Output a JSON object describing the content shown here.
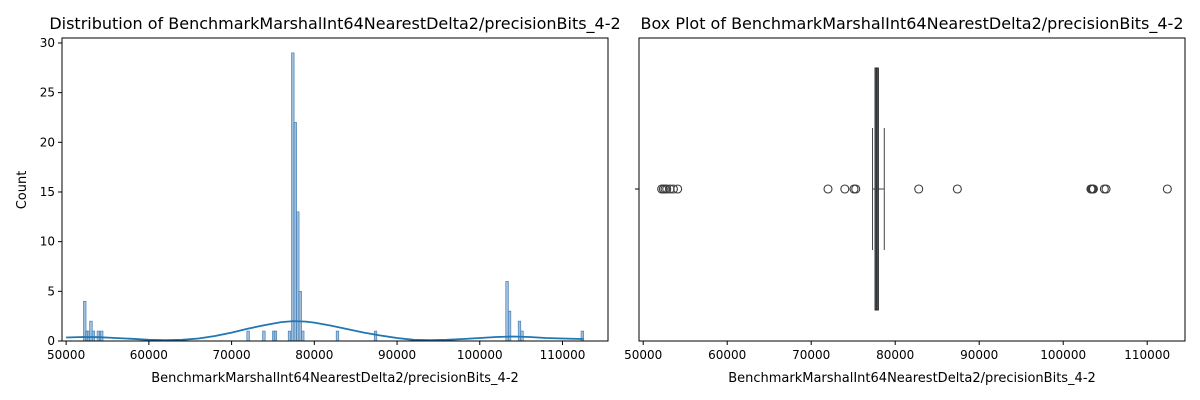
{
  "chart_data": [
    {
      "type": "bar",
      "subtype": "histogram-with-kde",
      "title": "Distribution of BenchmarkMarshalInt64NearestDelta2/precisionBits_4-2",
      "xlabel": "BenchmarkMarshalInt64NearestDelta2/precisionBits_4-2",
      "ylabel": "Count",
      "xlim": [
        49500,
        115500
      ],
      "ylim": [
        0,
        30.5
      ],
      "xticks": [
        50000,
        60000,
        70000,
        80000,
        90000,
        100000,
        110000
      ],
      "yticks": [
        0,
        5,
        10,
        15,
        20,
        25,
        30
      ],
      "bar_color": "#8fb4d5",
      "bar_edge_color": "#3a76b0",
      "kde_color": "#1f77b4",
      "bins": [
        {
          "x": 52250,
          "count": 4
        },
        {
          "x": 52500,
          "count": 1
        },
        {
          "x": 52700,
          "count": 1
        },
        {
          "x": 53000,
          "count": 2
        },
        {
          "x": 53300,
          "count": 1
        },
        {
          "x": 53900,
          "count": 1
        },
        {
          "x": 54300,
          "count": 1
        },
        {
          "x": 72000,
          "count": 1
        },
        {
          "x": 73900,
          "count": 1
        },
        {
          "x": 75100,
          "count": 1
        },
        {
          "x": 75300,
          "count": 1
        },
        {
          "x": 77000,
          "count": 1
        },
        {
          "x": 77400,
          "count": 29
        },
        {
          "x": 77700,
          "count": 22
        },
        {
          "x": 78000,
          "count": 13
        },
        {
          "x": 78300,
          "count": 5
        },
        {
          "x": 78600,
          "count": 1
        },
        {
          "x": 82800,
          "count": 1
        },
        {
          "x": 87400,
          "count": 1
        },
        {
          "x": 103300,
          "count": 6
        },
        {
          "x": 103600,
          "count": 3
        },
        {
          "x": 104800,
          "count": 2
        },
        {
          "x": 105100,
          "count": 1
        },
        {
          "x": 112400,
          "count": 1
        }
      ],
      "kde": {
        "x": [
          50000,
          52000,
          54000,
          56000,
          58000,
          60000,
          62000,
          64000,
          66000,
          68000,
          70000,
          72000,
          74000,
          76000,
          77500,
          79000,
          80000,
          82000,
          84000,
          86000,
          88000,
          90000,
          92000,
          94000,
          96000,
          98000,
          100000,
          102000,
          104000,
          106000,
          108000,
          110000,
          112500
        ],
        "y": [
          0.35,
          0.4,
          0.38,
          0.3,
          0.22,
          0.12,
          0.08,
          0.12,
          0.25,
          0.5,
          0.85,
          1.25,
          1.6,
          1.9,
          2.0,
          1.95,
          1.85,
          1.55,
          1.2,
          0.85,
          0.55,
          0.3,
          0.12,
          0.08,
          0.12,
          0.2,
          0.3,
          0.4,
          0.45,
          0.4,
          0.3,
          0.25,
          0.2
        ]
      }
    },
    {
      "type": "box",
      "title": "Box Plot of BenchmarkMarshalInt64NearestDelta2/precisionBits_4-2",
      "xlabel": "BenchmarkMarshalInt64NearestDelta2/precisionBits_4-2",
      "xlim": [
        49500,
        114500
      ],
      "xticks": [
        50000,
        60000,
        70000,
        80000,
        90000,
        100000,
        110000
      ],
      "box_color": "#3d7196",
      "box": {
        "whislo": 77300,
        "q1": 77600,
        "med": 77800,
        "q3": 78000,
        "whishi": 78700
      },
      "outliers": [
        52200,
        52400,
        52600,
        52800,
        53200,
        53600,
        54100,
        72000,
        74000,
        75100,
        75300,
        82800,
        87400,
        103300,
        103400,
        103500,
        103600,
        104900,
        105100,
        112400
      ]
    }
  ]
}
